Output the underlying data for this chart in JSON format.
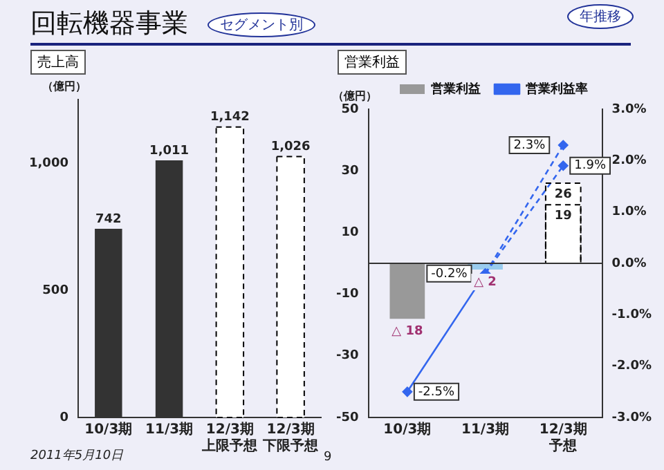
{
  "chart_data": [
    {
      "type": "other",
      "title": "回転機器事業",
      "annotations": [
        "セグメント別",
        "年推移",
        "2011年5月10日",
        "9"
      ]
    },
    {
      "type": "bar",
      "title": "売上高",
      "ylabel": "（億円）",
      "categories": [
        "10/3期",
        "11/3期",
        "12/3期上限予想",
        "12/3期下限予想"
      ],
      "series": [
        {
          "color": "#333333",
          "values": [
            742,
            1011,
            null,
            null
          ],
          "value_labels": [
            "742",
            "1,011",
            null,
            null
          ]
        },
        {
          "color": "#ffffff",
          "line_style": "dashed",
          "values": [
            null,
            null,
            1142,
            1026
          ],
          "value_labels": [
            null,
            null,
            "1,142",
            "1,026"
          ]
        }
      ],
      "ylim": [
        0,
        1250
      ],
      "yticks": [
        0,
        500,
        {
          "value": 1000,
          "label": "1,000"
        }
      ],
      "grid": false,
      "legend": false
    },
    {
      "type": "bar",
      "title": "営業利益",
      "ylabel": "（億円）",
      "categories": [
        "10/3期",
        "11/3期",
        "12/3期予想"
      ],
      "annotations": [
        {
          "text": "△ 18",
          "x": "10/3期",
          "y": -18
        },
        {
          "text": "△ 2",
          "x": "11/3期",
          "y": -2
        }
      ],
      "series": [
        {
          "name": "営業利益",
          "colors": [
            "#999999",
            "#99ccee",
            null
          ],
          "values": [
            -18,
            -2,
            null
          ]
        },
        {
          "color": "#ffffff",
          "line_style": "dashed",
          "values": [
            null,
            null,
            26
          ],
          "value_labels": [
            null,
            null,
            "26"
          ]
        },
        {
          "color": "#ffffff",
          "line_style": "dashed",
          "values": [
            null,
            null,
            19
          ],
          "value_labels": [
            null,
            null,
            "19"
          ]
        },
        {
          "type": "line",
          "axis": "y2",
          "name": "営業利益率",
          "color": "#3366ee",
          "values": [
            -2.5,
            -0.2,
            null
          ],
          "value_labels": [
            "-2.5%",
            "-0.2%",
            null
          ]
        },
        {
          "type": "line",
          "axis": "y2",
          "color": "#3366ee",
          "line_style": "dashed",
          "values": [
            null,
            -0.2,
            2.3
          ],
          "value_labels": [
            null,
            null,
            "2.3%"
          ]
        },
        {
          "type": "line",
          "axis": "y2",
          "color": "#3366ee",
          "line_style": "dashed",
          "values": [
            null,
            -0.2,
            1.9
          ],
          "value_labels": [
            null,
            null,
            "1.9%"
          ]
        }
      ],
      "ylim": [
        -50,
        50
      ],
      "yticks": [
        -50,
        -30,
        -10,
        10,
        30,
        50
      ],
      "y2lim": [
        -3,
        3
      ],
      "y2ticks": [
        {
          "value": -3,
          "label": "-3.0%"
        },
        {
          "value": -2,
          "label": "-2.0%"
        },
        {
          "value": -1,
          "label": "-1.0%"
        },
        {
          "value": 0,
          "label": "0.0%"
        },
        {
          "value": 1,
          "label": "1.0%"
        },
        {
          "value": 2,
          "label": "2.0%"
        },
        {
          "value": 3,
          "label": "3.0%"
        }
      ],
      "ref_lines": [
        {
          "axis": "y",
          "value": 0
        }
      ],
      "marker": "diamond",
      "grid": false,
      "legend": "top"
    }
  ]
}
